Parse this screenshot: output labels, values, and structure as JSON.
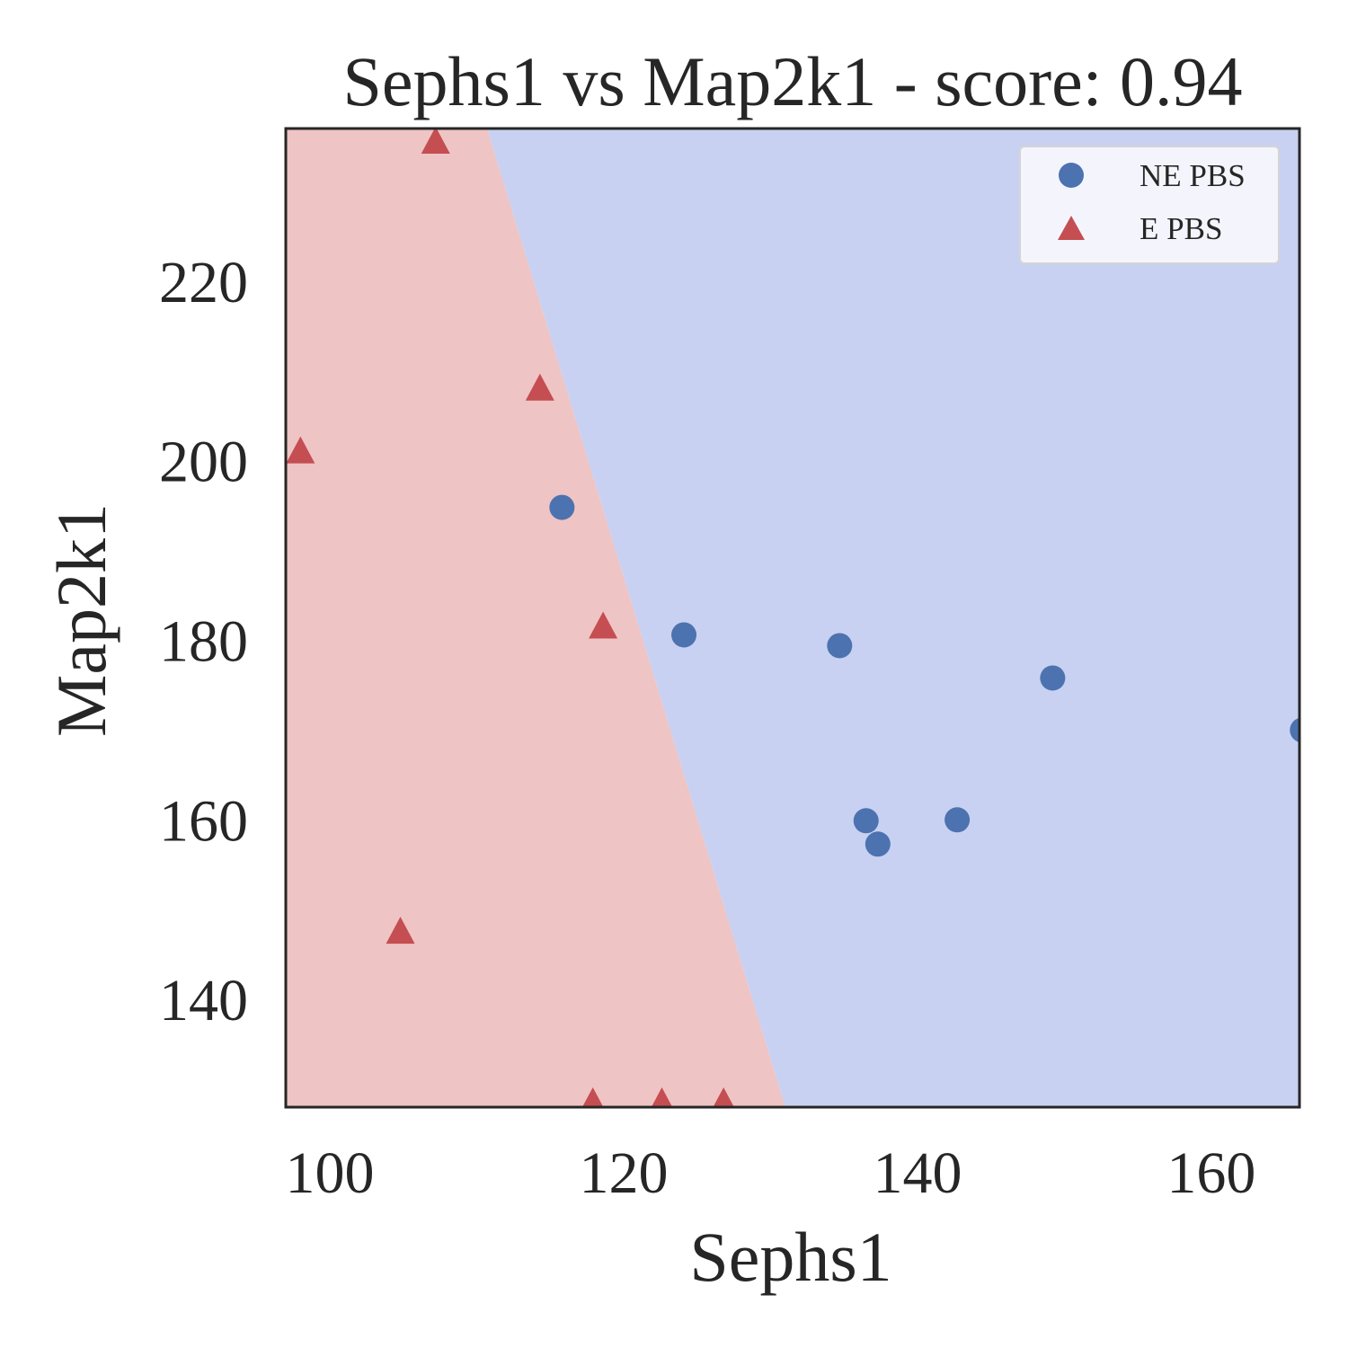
{
  "chart_data": {
    "type": "scatter",
    "title": "Sephs1 vs Map2k1 - score: 0.94",
    "xlabel": "Sephs1",
    "ylabel": "Map2k1",
    "xlim": [
      97,
      166
    ],
    "ylim": [
      128,
      237
    ],
    "xticks": [
      100,
      120,
      140,
      160
    ],
    "yticks": [
      140,
      160,
      180,
      200,
      220
    ],
    "grid": false,
    "legend_position": "top-right",
    "decision_boundary": {
      "points": [
        [
          110.7,
          237
        ],
        [
          131.0,
          128
        ]
      ],
      "left_region_class": "E PBS",
      "right_region_class": "NE PBS",
      "left_region_color": "#efc4c4",
      "right_region_color": "#c8d1f1"
    },
    "series": [
      {
        "name": "NE PBS",
        "marker": "circle",
        "color": "#4c72b0",
        "points": [
          [
            115.8,
            194.8
          ],
          [
            124.1,
            180.6
          ],
          [
            134.7,
            179.4
          ],
          [
            136.5,
            159.9
          ],
          [
            137.3,
            157.3
          ],
          [
            142.7,
            160.0
          ],
          [
            149.2,
            175.8
          ],
          [
            166.2,
            170.0
          ]
        ]
      },
      {
        "name": "E PBS",
        "marker": "triangle",
        "color": "#c44e52",
        "points": [
          [
            98.0,
            201.0
          ],
          [
            104.8,
            147.5
          ],
          [
            107.2,
            235.5
          ],
          [
            114.3,
            208.0
          ],
          [
            118.6,
            181.5
          ],
          [
            117.9,
            128.5
          ],
          [
            122.6,
            128.5
          ],
          [
            126.8,
            128.5
          ]
        ]
      }
    ]
  }
}
